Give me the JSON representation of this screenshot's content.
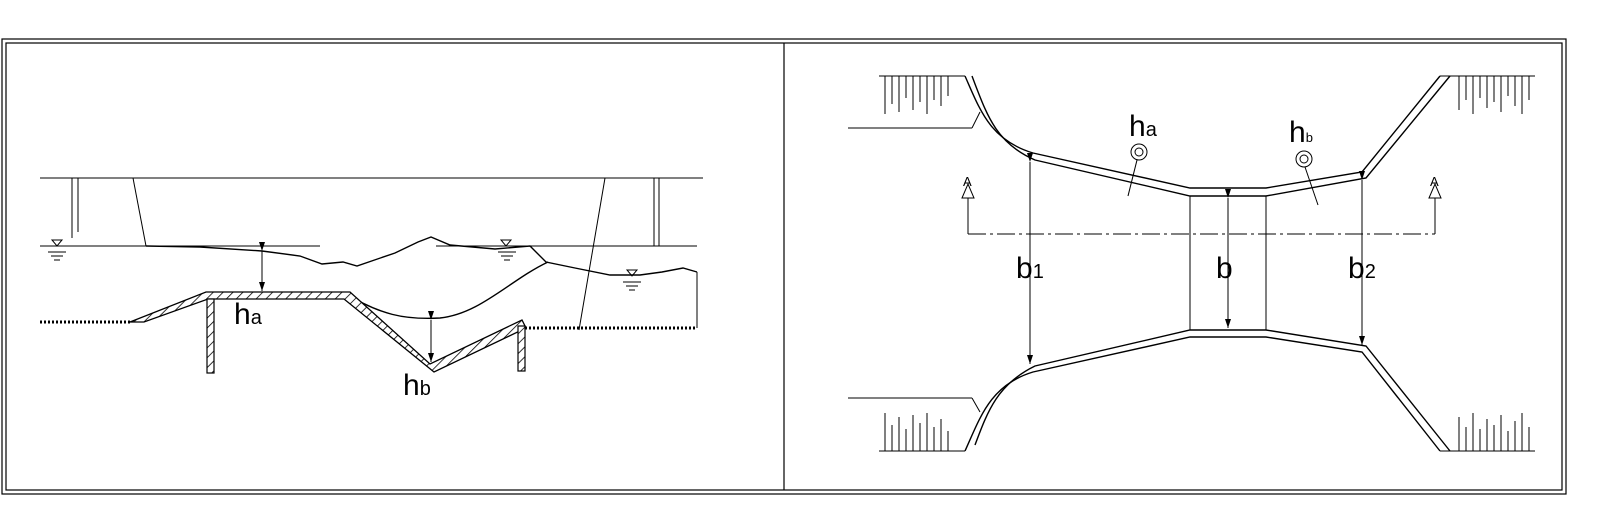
{
  "profile_view": {
    "ha": {
      "main": "h",
      "sub": "a"
    },
    "hb": {
      "main": "h",
      "sub": "b"
    }
  },
  "plan_view": {
    "ha": {
      "main": "h",
      "sub": "a"
    },
    "hb": {
      "main": "h",
      "sub": "b"
    },
    "b1": {
      "main": "b",
      "sub": "1"
    },
    "b": {
      "main": "b"
    },
    "b2": {
      "main": "b",
      "sub": "2"
    },
    "section_mark_left": "A",
    "section_mark_right": "A"
  },
  "colors": {
    "line": "#000000",
    "background": "#ffffff"
  }
}
